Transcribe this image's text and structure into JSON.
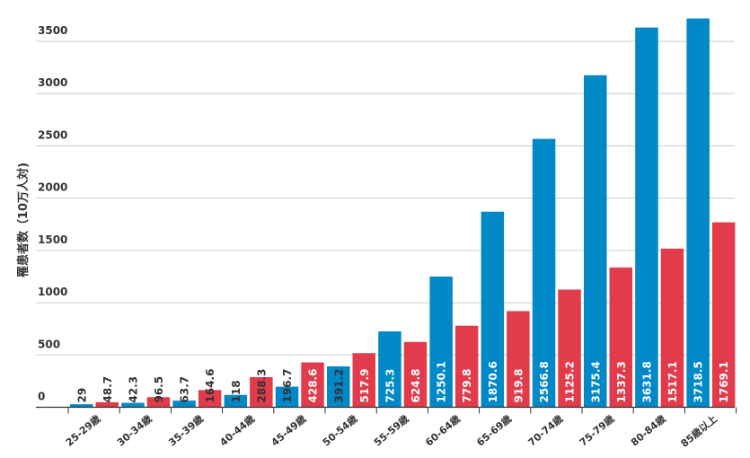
{
  "chart_data": {
    "type": "bar",
    "title": "",
    "xlabel": "",
    "ylabel": "罹患者数（10万人対)",
    "ylim": [
      0,
      3800
    ],
    "yticks": [
      0,
      500,
      1000,
      1500,
      2000,
      2500,
      3000,
      3500
    ],
    "grid": true,
    "legend": "none",
    "categories": [
      "25-29歳",
      "30-34歳",
      "35-39歳",
      "40-44歳",
      "45-49歳",
      "50-54歳",
      "55-59歳",
      "60-64歳",
      "65-69歳",
      "70-74歳",
      "75-79歳",
      "80-84歳",
      "85歳以上"
    ],
    "series": [
      {
        "color": "#0088c7",
        "values": [
          29,
          42.3,
          63.7,
          118,
          196.7,
          391.2,
          725.3,
          1250.1,
          1870.6,
          2566.8,
          3175.4,
          3631.8,
          3718.5
        ]
      },
      {
        "color": "#e23c4c",
        "values": [
          48.7,
          96.5,
          164.6,
          288.3,
          428.6,
          517.9,
          624.8,
          779.8,
          919.8,
          1125.2,
          1337.3,
          1517.1,
          1769.1
        ]
      }
    ]
  }
}
